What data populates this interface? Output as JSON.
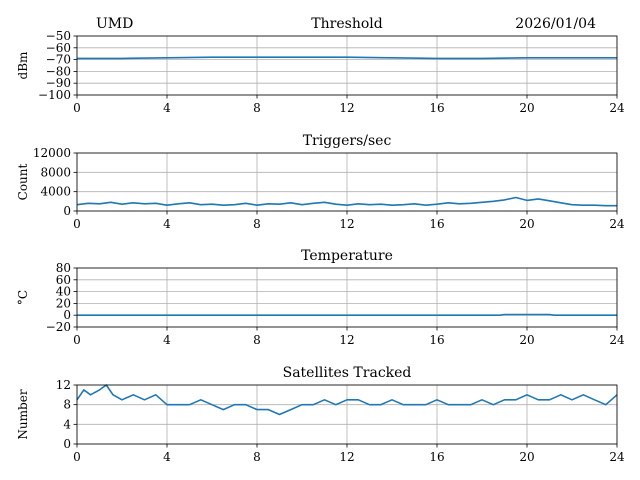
{
  "header": {
    "station": "UMD",
    "date": "2026/01/04"
  },
  "colors": {
    "series": "#1f77b4",
    "grid": "#b0b0b0",
    "axes": "#000000"
  },
  "chart_data": [
    {
      "type": "line",
      "title": "Threshold",
      "ylabel": "dBm",
      "xlim": [
        0,
        24
      ],
      "ylim": [
        -100,
        -50
      ],
      "xticks": [
        0,
        4,
        8,
        12,
        16,
        20,
        24
      ],
      "xtick_labels": [
        "0",
        "4",
        "8",
        "12",
        "16",
        "20",
        "24"
      ],
      "yticks": [
        -100,
        -90,
        -80,
        -70,
        -60,
        -50
      ],
      "ytick_labels": [
        "−100",
        "−90",
        "−80",
        "−70",
        "−60",
        "−50"
      ],
      "grid": true,
      "x": [
        0,
        2,
        4,
        6,
        8,
        10,
        12,
        14,
        16,
        18,
        20,
        22,
        24
      ],
      "y": [
        -69,
        -69,
        -68.5,
        -68,
        -68,
        -68,
        -68,
        -68.5,
        -69,
        -69,
        -68.5,
        -68.5,
        -68.5
      ]
    },
    {
      "type": "line",
      "title": "Triggers/sec",
      "ylabel": "Count",
      "xlim": [
        0,
        24
      ],
      "ylim": [
        0,
        12000
      ],
      "xticks": [
        0,
        4,
        8,
        12,
        16,
        20,
        24
      ],
      "xtick_labels": [
        "0",
        "4",
        "8",
        "12",
        "16",
        "20",
        "24"
      ],
      "yticks": [
        0,
        4000,
        8000,
        12000
      ],
      "ytick_labels": [
        "0",
        "4000",
        "8000",
        "12000"
      ],
      "grid": true,
      "x": [
        0,
        0.5,
        1,
        1.5,
        2,
        2.5,
        3,
        3.5,
        4,
        4.5,
        5,
        5.5,
        6,
        6.5,
        7,
        7.5,
        8,
        8.5,
        9,
        9.5,
        10,
        10.5,
        11,
        11.5,
        12,
        12.5,
        13,
        13.5,
        14,
        14.5,
        15,
        15.5,
        16,
        16.5,
        17,
        17.5,
        18,
        18.5,
        19,
        19.5,
        20,
        20.5,
        21,
        21.5,
        22,
        22.5,
        23,
        23.5,
        24
      ],
      "y": [
        1300,
        1600,
        1500,
        1800,
        1400,
        1700,
        1500,
        1600,
        1200,
        1500,
        1700,
        1300,
        1400,
        1200,
        1300,
        1600,
        1200,
        1500,
        1400,
        1700,
        1300,
        1600,
        1800,
        1400,
        1200,
        1500,
        1300,
        1400,
        1200,
        1300,
        1500,
        1200,
        1400,
        1700,
        1500,
        1600,
        1800,
        2000,
        2300,
        2800,
        2200,
        2500,
        2100,
        1700,
        1300,
        1200,
        1200,
        1100,
        1100
      ]
    },
    {
      "type": "line",
      "title": "Temperature",
      "ylabel": "°C",
      "xlim": [
        0,
        24
      ],
      "ylim": [
        -20,
        80
      ],
      "xticks": [
        0,
        4,
        8,
        12,
        16,
        20,
        24
      ],
      "xtick_labels": [
        "0",
        "4",
        "8",
        "12",
        "16",
        "20",
        "24"
      ],
      "yticks": [
        -20,
        0,
        20,
        40,
        60,
        80
      ],
      "ytick_labels": [
        "−20",
        "0",
        "20",
        "40",
        "60",
        "80"
      ],
      "grid": true,
      "x": [
        0,
        4,
        8,
        12,
        16,
        18.8,
        19,
        21,
        21.2,
        24
      ],
      "y": [
        0,
        0,
        0,
        0,
        0,
        0,
        1,
        1,
        0,
        0
      ]
    },
    {
      "type": "line",
      "title": "Satellites Tracked",
      "ylabel": "Number",
      "xlim": [
        0,
        24
      ],
      "ylim": [
        0,
        12
      ],
      "xticks": [
        0,
        4,
        8,
        12,
        16,
        20,
        24
      ],
      "xtick_labels": [
        "0",
        "4",
        "8",
        "12",
        "16",
        "20",
        "24"
      ],
      "yticks": [
        0,
        4,
        8,
        12
      ],
      "ytick_labels": [
        "0",
        "4",
        "8",
        "12"
      ],
      "grid": true,
      "x": [
        0,
        0.3,
        0.6,
        1,
        1.3,
        1.6,
        2,
        2.5,
        3,
        3.5,
        4,
        4.5,
        5,
        5.5,
        6,
        6.5,
        7,
        7.5,
        8,
        8.5,
        9,
        9.5,
        10,
        10.5,
        11,
        11.5,
        12,
        12.5,
        13,
        13.5,
        14,
        14.5,
        15,
        15.5,
        16,
        16.5,
        17,
        17.5,
        18,
        18.5,
        19,
        19.5,
        20,
        20.5,
        21,
        21.5,
        22,
        22.5,
        23,
        23.5,
        24
      ],
      "y": [
        9,
        11,
        10,
        11,
        12,
        10,
        9,
        10,
        9,
        10,
        8,
        8,
        8,
        9,
        8,
        7,
        8,
        8,
        7,
        7,
        6,
        7,
        8,
        8,
        9,
        8,
        9,
        9,
        8,
        8,
        9,
        8,
        8,
        8,
        9,
        8,
        8,
        8,
        9,
        8,
        9,
        9,
        10,
        9,
        9,
        10,
        9,
        10,
        9,
        8,
        10
      ]
    }
  ]
}
